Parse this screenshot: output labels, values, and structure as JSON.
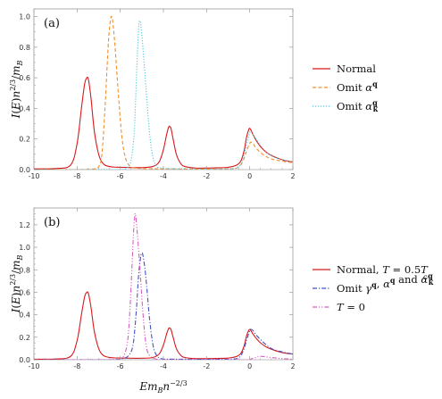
{
  "figure": {
    "xlabel": "Em_B n^{-2/3}",
    "ylabel": "I(E) n^{2/3} / m_B"
  },
  "colors": {
    "normal": "#d7191c",
    "omit_alpha_q": "#f28e2b",
    "omit_alpha_kq": "#4fc8dc",
    "omit_gamma": "#4452c8",
    "t0": "#d75fbf",
    "frame": "#999999",
    "zero": "#cccccc"
  },
  "chart_data": [
    {
      "type": "line",
      "panel_label": "(a)",
      "xlim": [
        -10,
        2
      ],
      "ylim": [
        0,
        1.05
      ],
      "x_ticks": [
        -10,
        -8,
        -6,
        -4,
        -2,
        0,
        2
      ],
      "x_tick_labels": [
        "-10",
        "-8",
        "-6",
        "-4",
        "-2",
        "0",
        "2"
      ],
      "y_ticks": [
        0.0,
        0.2,
        0.4,
        0.6,
        0.8,
        1.0
      ],
      "y_tick_labels": [
        "0.0",
        "0.2",
        "0.4",
        "0.6",
        "0.8",
        "1.0"
      ],
      "series": [
        {
          "name": "Normal",
          "label_parts": [
            {
              "t": "Normal"
            }
          ],
          "color_key": "normal",
          "dash": "",
          "x": [
            -10,
            -9,
            -8.3,
            -8.0,
            -7.8,
            -7.65,
            -7.55,
            -7.5,
            -7.45,
            -7.35,
            -7.2,
            -7.0,
            -6.8,
            -6.5,
            -6.0,
            -5.0,
            -4.5,
            -4.2,
            -4.0,
            -3.85,
            -3.75,
            -3.7,
            -3.65,
            -3.55,
            -3.4,
            -3.2,
            -3.0,
            -2.5,
            -2.0,
            -1.5,
            -1.0,
            -0.6,
            -0.4,
            -0.25,
            -0.15,
            -0.05,
            0.0,
            0.05,
            0.15,
            0.3,
            0.5,
            0.8,
            1.2,
            1.6,
            2.0
          ],
          "y": [
            0.005,
            0.007,
            0.03,
            0.17,
            0.4,
            0.56,
            0.6,
            0.6,
            0.57,
            0.46,
            0.25,
            0.1,
            0.04,
            0.02,
            0.015,
            0.013,
            0.02,
            0.05,
            0.13,
            0.23,
            0.28,
            0.28,
            0.27,
            0.2,
            0.1,
            0.04,
            0.02,
            0.01,
            0.01,
            0.012,
            0.015,
            0.03,
            0.06,
            0.13,
            0.21,
            0.26,
            0.27,
            0.26,
            0.23,
            0.19,
            0.15,
            0.11,
            0.08,
            0.06,
            0.05
          ]
        },
        {
          "name": "Omit alpha^q",
          "label_parts": [
            {
              "t": "Omit "
            },
            {
              "t": "α",
              "c": "m"
            },
            {
              "t": "q",
              "c": "b",
              "sup": true
            }
          ],
          "color_key": "omit_alpha_q",
          "dash": "4 2.5",
          "x": [
            -10,
            -8,
            -7.2,
            -7.0,
            -6.85,
            -6.7,
            -6.55,
            -6.45,
            -6.4,
            -6.35,
            -6.25,
            -6.1,
            -5.95,
            -5.8,
            -5.6,
            -5.3,
            -4.0,
            -1.0,
            -0.5,
            -0.3,
            -0.15,
            0.0,
            0.05,
            0.15,
            0.3,
            0.6,
            1.0,
            1.5,
            2.0
          ],
          "y": [
            0.0,
            0.0,
            0.005,
            0.02,
            0.1,
            0.42,
            0.83,
            0.98,
            1.0,
            0.97,
            0.82,
            0.52,
            0.25,
            0.1,
            0.03,
            0.01,
            0.005,
            0.005,
            0.02,
            0.06,
            0.12,
            0.17,
            0.18,
            0.17,
            0.14,
            0.1,
            0.07,
            0.055,
            0.045
          ]
        },
        {
          "name": "Omit alpha_k^q",
          "label_parts": [
            {
              "t": "Omit "
            },
            {
              "t": "α",
              "c": "m"
            },
            {
              "t": "q",
              "c": "b",
              "sup": true
            },
            {
              "t": "k",
              "c": "b",
              "sub": true
            }
          ],
          "color_key": "omit_alpha_kq",
          "dash": "1.2 1.8",
          "x": [
            -10,
            -7,
            -6,
            -5.7,
            -5.5,
            -5.35,
            -5.25,
            -5.15,
            -5.1,
            -5.05,
            -4.95,
            -4.8,
            -4.65,
            -4.5,
            -4.35,
            -4.1,
            -3.0,
            -1.0,
            -0.5,
            -0.3,
            -0.15,
            0.0,
            0.05,
            0.15,
            0.3,
            0.6,
            1.0,
            1.5,
            2.0
          ],
          "y": [
            0.0,
            0.0,
            0.0,
            0.01,
            0.06,
            0.25,
            0.6,
            0.92,
            0.97,
            0.95,
            0.8,
            0.52,
            0.25,
            0.09,
            0.03,
            0.01,
            0.005,
            0.005,
            0.02,
            0.08,
            0.16,
            0.24,
            0.25,
            0.23,
            0.2,
            0.14,
            0.09,
            0.065,
            0.05
          ]
        }
      ]
    },
    {
      "type": "line",
      "panel_label": "(b)",
      "xlim": [
        -10,
        2
      ],
      "ylim": [
        0,
        1.35
      ],
      "x_ticks": [
        -10,
        -8,
        -6,
        -4,
        -2,
        0,
        2
      ],
      "x_tick_labels": [
        "-10",
        "-8",
        "-6",
        "-4",
        "-2",
        "0",
        "2"
      ],
      "y_ticks": [
        0.0,
        0.2,
        0.4,
        0.6,
        0.8,
        1.0,
        1.2
      ],
      "y_tick_labels": [
        "0.0",
        "0.2",
        "0.4",
        "0.6",
        "0.8",
        "1.0",
        "1.2"
      ],
      "series": [
        {
          "name": "Normal, T = 0.5T_c",
          "label_parts": [
            {
              "t": "Normal, "
            },
            {
              "t": "T",
              "c": "m"
            },
            {
              "t": " = 0.5"
            },
            {
              "t": "T",
              "c": "m"
            },
            {
              "t": "c",
              "c": "m",
              "sub": true
            }
          ],
          "color_key": "normal",
          "dash": "",
          "x": [
            -10,
            -9,
            -8.3,
            -8.0,
            -7.8,
            -7.65,
            -7.55,
            -7.5,
            -7.45,
            -7.35,
            -7.2,
            -7.0,
            -6.8,
            -6.5,
            -6.0,
            -5.0,
            -4.5,
            -4.2,
            -4.0,
            -3.85,
            -3.75,
            -3.7,
            -3.65,
            -3.55,
            -3.4,
            -3.2,
            -3.0,
            -2.5,
            -2.0,
            -1.5,
            -1.0,
            -0.6,
            -0.4,
            -0.25,
            -0.15,
            -0.05,
            0.0,
            0.05,
            0.15,
            0.3,
            0.5,
            0.8,
            1.2,
            1.6,
            2.0
          ],
          "y": [
            0.005,
            0.007,
            0.03,
            0.17,
            0.4,
            0.56,
            0.6,
            0.6,
            0.57,
            0.46,
            0.25,
            0.1,
            0.04,
            0.02,
            0.015,
            0.013,
            0.02,
            0.05,
            0.13,
            0.23,
            0.28,
            0.28,
            0.27,
            0.2,
            0.1,
            0.04,
            0.02,
            0.01,
            0.01,
            0.012,
            0.015,
            0.03,
            0.06,
            0.13,
            0.21,
            0.26,
            0.27,
            0.26,
            0.23,
            0.19,
            0.15,
            0.11,
            0.08,
            0.06,
            0.05
          ]
        },
        {
          "name": "Omit gamma^q, alpha^q and alpha_k^q",
          "label_parts": [
            {
              "t": "Omit "
            },
            {
              "t": "γ",
              "c": "m"
            },
            {
              "t": "q",
              "c": "b",
              "sup": true
            },
            {
              "t": ", "
            },
            {
              "t": "α",
              "c": "m"
            },
            {
              "t": "q",
              "c": "b",
              "sup": true
            },
            {
              "t": " and "
            },
            {
              "t": "α",
              "c": "m"
            },
            {
              "t": "q",
              "c": "b",
              "sup": true
            },
            {
              "t": "k",
              "c": "b",
              "sub": true
            }
          ],
          "color_key": "omit_gamma",
          "dash": "5 2 1.2 2",
          "x": [
            -10,
            -6.5,
            -5.9,
            -5.6,
            -5.4,
            -5.25,
            -5.15,
            -5.05,
            -5.0,
            -4.95,
            -4.85,
            -4.75,
            -4.65,
            -4.5,
            -4.35,
            -4.1,
            -3.5,
            -1.0,
            -0.5,
            -0.3,
            -0.15,
            0.0,
            0.05,
            0.15,
            0.3,
            0.6,
            1.0,
            1.5,
            2.0
          ],
          "y": [
            0.0,
            0.0,
            0.01,
            0.04,
            0.14,
            0.45,
            0.75,
            0.92,
            0.95,
            0.93,
            0.8,
            0.6,
            0.38,
            0.15,
            0.05,
            0.01,
            0.005,
            0.005,
            0.02,
            0.08,
            0.17,
            0.26,
            0.27,
            0.26,
            0.22,
            0.16,
            0.1,
            0.07,
            0.05
          ]
        },
        {
          "name": "T = 0",
          "label_parts": [
            {
              "t": "T",
              "c": "m"
            },
            {
              "t": " = 0"
            }
          ],
          "color_key": "t0",
          "dash": "5 2 1.2 2 1.2 2",
          "x": [
            -10,
            -6.5,
            -6.0,
            -5.8,
            -5.65,
            -5.55,
            -5.45,
            -5.38,
            -5.33,
            -5.3,
            -5.25,
            -5.15,
            -5.05,
            -4.95,
            -4.85,
            -4.75,
            -4.6,
            -4.4,
            -4.0,
            -2.0,
            -0.5,
            -0.2,
            0.0,
            0.1,
            0.3,
            0.5,
            1.0,
            1.5,
            2.0
          ],
          "y": [
            0.0,
            0.0,
            0.01,
            0.05,
            0.18,
            0.45,
            0.85,
            1.15,
            1.27,
            1.3,
            1.22,
            0.98,
            0.7,
            0.42,
            0.2,
            0.08,
            0.03,
            0.01,
            0.0,
            0.0,
            0.0,
            0.0,
            0.0,
            0.01,
            0.02,
            0.03,
            0.02,
            0.01,
            0.005
          ]
        }
      ]
    }
  ]
}
